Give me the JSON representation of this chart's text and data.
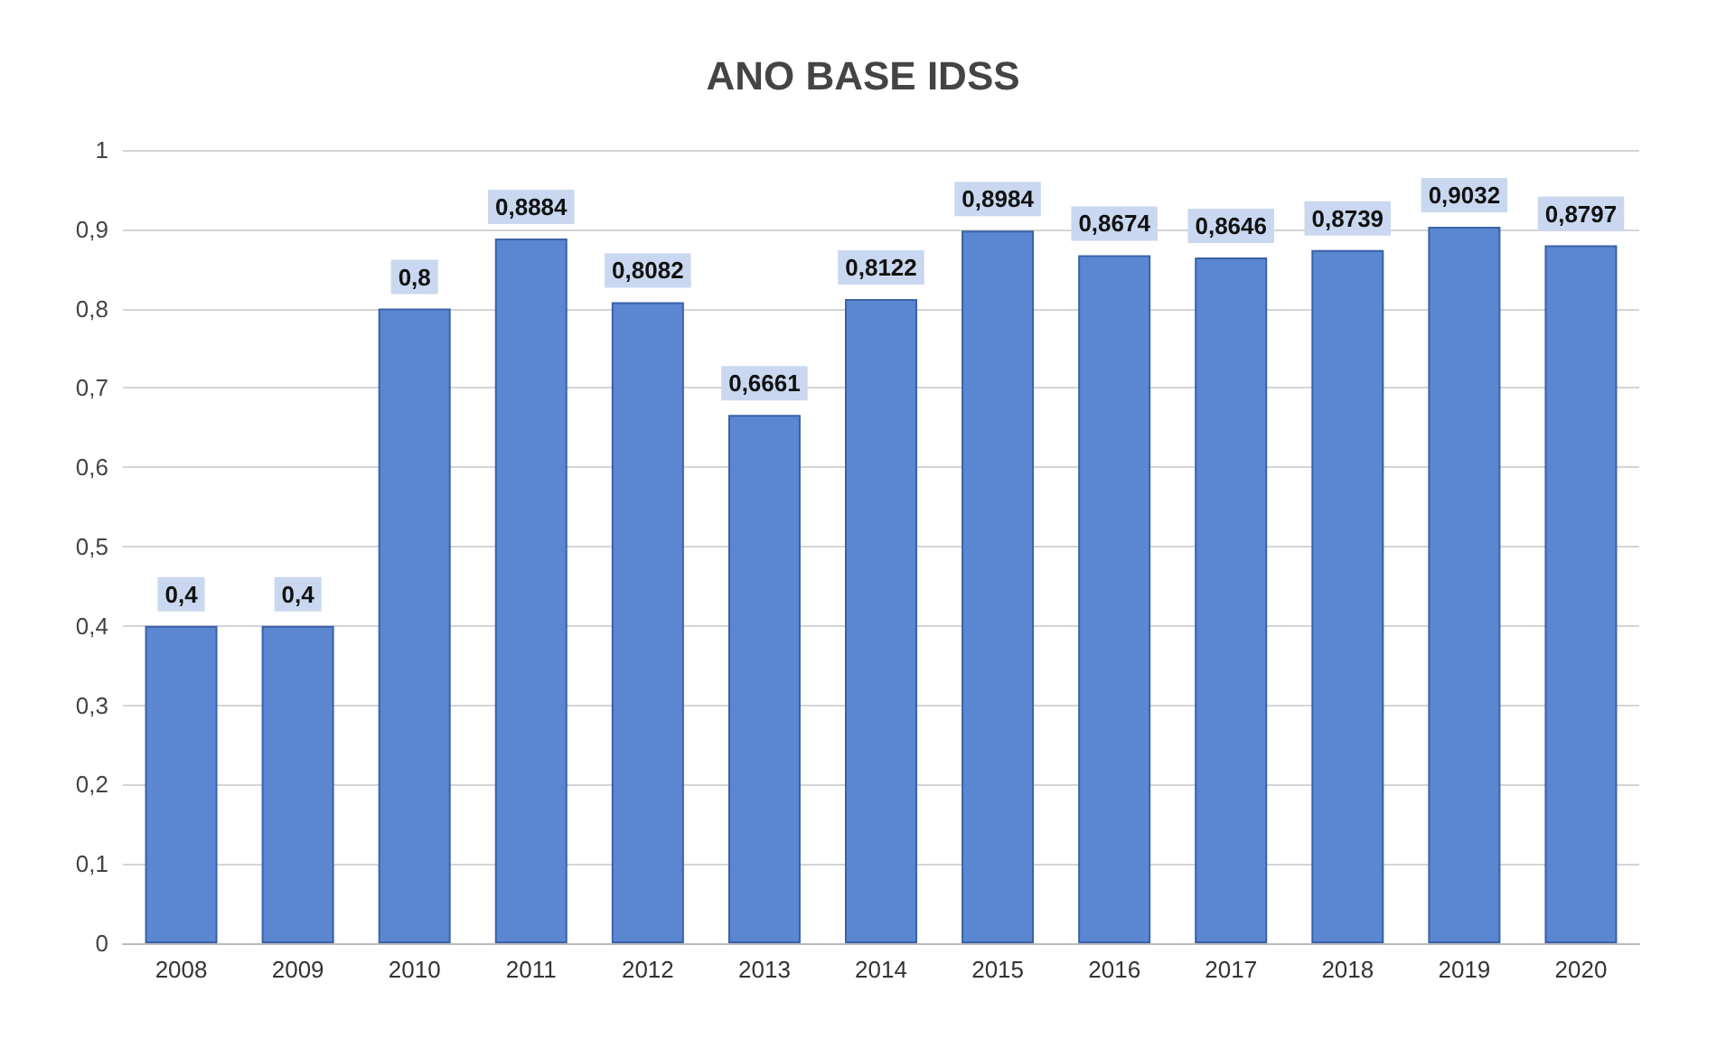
{
  "chart_data": {
    "type": "bar",
    "title": "ANO BASE IDSS",
    "categories": [
      "2008",
      "2009",
      "2010",
      "2011",
      "2012",
      "2013",
      "2014",
      "2015",
      "2016",
      "2017",
      "2018",
      "2019",
      "2020"
    ],
    "values": [
      0.4,
      0.4,
      0.8,
      0.8884,
      0.8082,
      0.6661,
      0.8122,
      0.8984,
      0.8674,
      0.8646,
      0.8739,
      0.9032,
      0.8797
    ],
    "value_labels": [
      "0,4",
      "0,4",
      "0,8",
      "0,8884",
      "0,8082",
      "0,6661",
      "0,8122",
      "0,8984",
      "0,8674",
      "0,8646",
      "0,8739",
      "0,9032",
      "0,8797"
    ],
    "color": "#5a86d2",
    "ylim": [
      0,
      1
    ],
    "yticks": [
      0,
      {
        "value": 0.1,
        "label": "0,1"
      },
      {
        "value": 0.2,
        "label": "0,2"
      },
      {
        "value": 0.3,
        "label": "0,3"
      },
      {
        "value": 0.4,
        "label": "0,4"
      },
      {
        "value": 0.5,
        "label": "0,5"
      },
      {
        "value": 0.6,
        "label": "0,6"
      },
      {
        "value": 0.7,
        "label": "0,7"
      },
      {
        "value": 0.8,
        "label": "0,8"
      },
      {
        "value": 0.9,
        "label": "0,9"
      },
      1
    ],
    "grid": "y"
  }
}
